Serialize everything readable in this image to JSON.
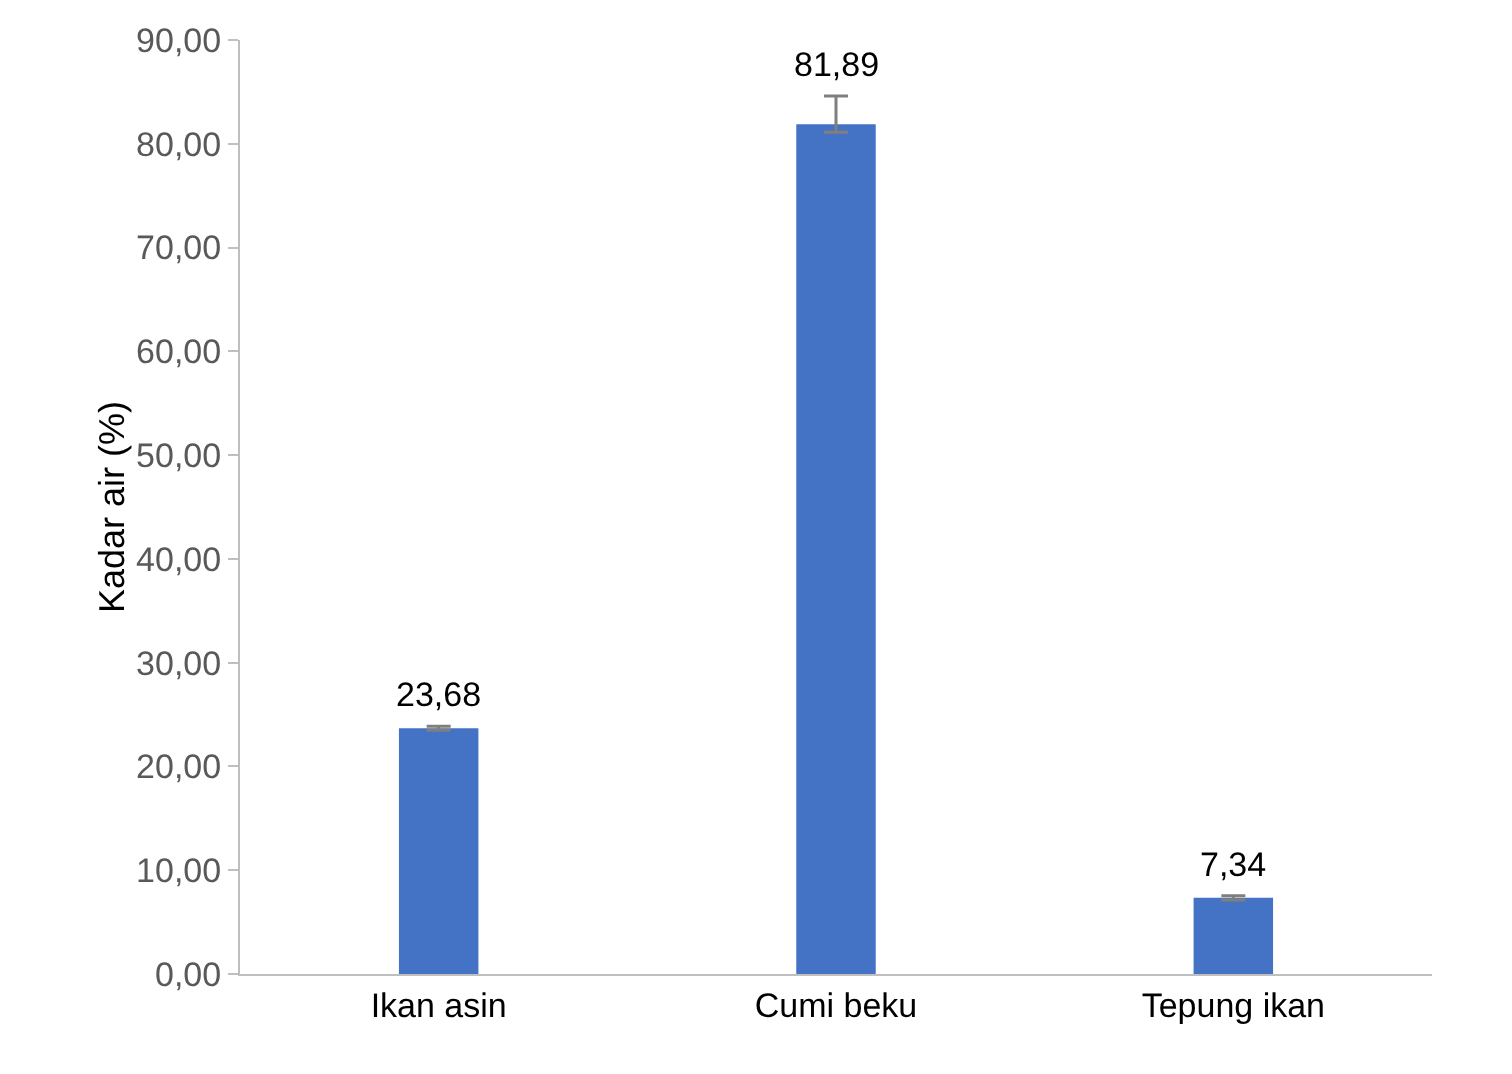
{
  "chart_data": {
    "type": "bar",
    "ylabel": "Kadar air (%)",
    "categories": [
      "Ikan asin",
      "Cumi beku",
      "Tepung ikan"
    ],
    "values": [
      23.68,
      81.89,
      7.34
    ],
    "color": "#4472c4",
    "errors": [
      0.2,
      [
        81.1,
        84.6
      ],
      0.2
    ],
    "value_labels": [
      "23,68",
      "81,89",
      "7,34"
    ],
    "ylim": [
      0,
      90
    ],
    "yticks": [
      {
        "value": 0,
        "label": "0,00"
      },
      {
        "value": 10,
        "label": "10,00"
      },
      {
        "value": 20,
        "label": "20,00"
      },
      {
        "value": 30,
        "label": "30,00"
      },
      {
        "value": 40,
        "label": "40,00"
      },
      {
        "value": 50,
        "label": "50,00"
      },
      {
        "value": 60,
        "label": "60,00"
      },
      {
        "value": 70,
        "label": "70,00"
      },
      {
        "value": 80,
        "label": "80,00"
      },
      {
        "value": 90,
        "label": "90,00"
      }
    ],
    "grid": false,
    "legend": false
  }
}
